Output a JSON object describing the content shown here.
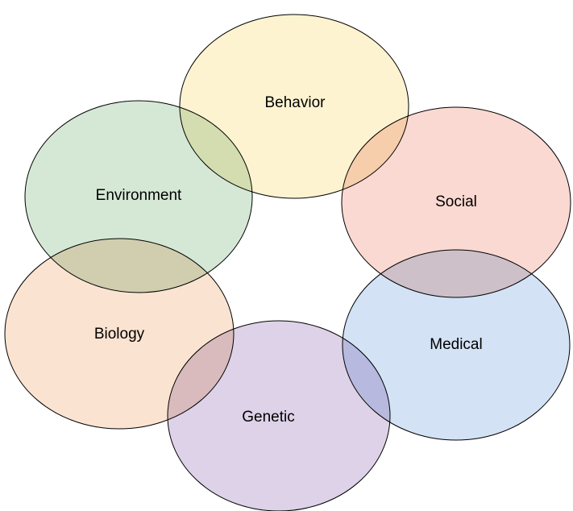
{
  "diagram": {
    "type": "overlapping-circles",
    "circles": [
      {
        "id": "behavior",
        "label": "Behavior",
        "fill": "#fdf3d1"
      },
      {
        "id": "social",
        "label": "Social",
        "fill": "#f9d9d1"
      },
      {
        "id": "medical",
        "label": "Medical",
        "fill": "#d3e2f5"
      },
      {
        "id": "genetic",
        "label": "Genetic",
        "fill": "#ddd2e7"
      },
      {
        "id": "biology",
        "label": "Biology",
        "fill": "#fbe3d1"
      },
      {
        "id": "environment",
        "label": "Environment",
        "fill": "#d5e8d6"
      }
    ]
  }
}
